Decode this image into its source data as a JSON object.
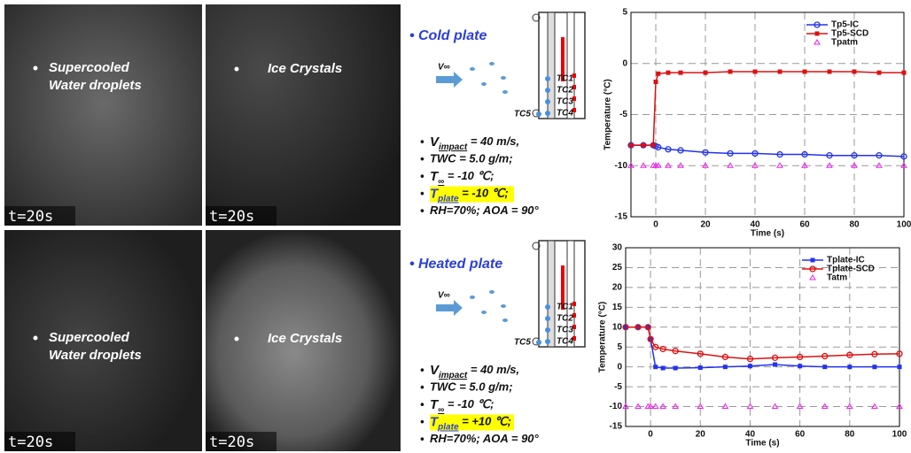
{
  "panels": [
    {
      "photos": [
        {
          "label": [
            "Supercooled",
            "Water droplets"
          ],
          "time": "t=20s"
        },
        {
          "label": [
            "Ice Crystals"
          ],
          "time": "t=20s"
        }
      ],
      "plate_title": "Cold plate",
      "diagram": {
        "velocity": "V∞",
        "sensors": [
          "TC1",
          "TC2",
          "TC3",
          "TC4",
          "TC5"
        ]
      },
      "conditions": [
        {
          "text": "V",
          "sub": "impact",
          "rest": " = 40 m/s,"
        },
        {
          "text": "TWC = 5.0 g/m;"
        },
        {
          "text": "T",
          "sub": "∞",
          "rest": " = -10 ℃;"
        },
        {
          "text": "T",
          "sub": "plate",
          "rest": " = -10  ℃;",
          "highlight": true
        },
        {
          "text": "RH=70%; AOA = 90°"
        }
      ]
    },
    {
      "photos": [
        {
          "label": [
            "Supercooled",
            "Water droplets"
          ],
          "time": "t=20s"
        },
        {
          "label": [
            "Ice Crystals"
          ],
          "time": "t=20s"
        }
      ],
      "plate_title": "Heated plate",
      "diagram": {
        "velocity": "V∞",
        "sensors": [
          "TC1",
          "TC2",
          "TC3",
          "TC4",
          "TC5"
        ]
      },
      "conditions": [
        {
          "text": "V",
          "sub": "impact",
          "rest": " = 40 m/s,"
        },
        {
          "text": "TWC = 5.0 g/m;"
        },
        {
          "text": "T",
          "sub": "∞",
          "rest": " = -10 ℃;"
        },
        {
          "text": "T",
          "sub": "plate",
          "rest": " = +10  ℃;",
          "highlight": true
        },
        {
          "text": "RH=70%; AOA = 90°"
        }
      ]
    }
  ],
  "chart_data": [
    {
      "type": "line",
      "x_label": "Time (s)",
      "y_label": "Temperature (°C)",
      "xlim": [
        -10,
        100
      ],
      "xticks": [
        0,
        20,
        40,
        60,
        80,
        100
      ],
      "ylim": [
        -15,
        5
      ],
      "yticks": [
        -15,
        -10,
        -5,
        0,
        5
      ],
      "grid": true,
      "x": [
        -10,
        -5,
        -1,
        0,
        1,
        5,
        10,
        20,
        30,
        40,
        50,
        60,
        70,
        80,
        90,
        100
      ],
      "series": [
        {
          "name": "Tp5-IC",
          "color": "#2233ee",
          "marker": "circle",
          "values": [
            -8,
            -8,
            -8,
            -8.1,
            -8.2,
            -8.4,
            -8.5,
            -8.7,
            -8.8,
            -8.8,
            -8.9,
            -8.9,
            -9,
            -9,
            -9,
            -9.1
          ]
        },
        {
          "name": "Tp5-SCD",
          "color": "#dd1111",
          "marker": "square",
          "values": [
            -8,
            -8,
            -8,
            -1.8,
            -1,
            -0.9,
            -0.9,
            -0.9,
            -0.8,
            -0.8,
            -0.8,
            -0.8,
            -0.8,
            -0.8,
            -0.9,
            -0.9
          ]
        },
        {
          "name": "Tpatm",
          "color": "#ee22ee",
          "marker": "triangle",
          "values": [
            -10,
            -10,
            -10,
            -10,
            -10,
            -10,
            -10,
            -10,
            -10,
            -10,
            -10,
            -10,
            -10,
            -10,
            -10,
            -10
          ]
        }
      ]
    },
    {
      "type": "line",
      "x_label": "Time (s)",
      "y_label": "Temperature (°C)",
      "xlim": [
        -10,
        100
      ],
      "xticks": [
        0,
        20,
        40,
        60,
        80,
        100
      ],
      "ylim": [
        -15,
        30
      ],
      "yticks": [
        -15,
        -10,
        -5,
        0,
        5,
        10,
        15,
        20,
        25,
        30
      ],
      "grid": true,
      "x": [
        -10,
        -5,
        -1,
        0,
        2,
        5,
        10,
        20,
        30,
        40,
        50,
        60,
        70,
        80,
        90,
        100
      ],
      "series": [
        {
          "name": "Tplate-IC",
          "color": "#2233ee",
          "marker": "square",
          "values": [
            10,
            10,
            10,
            7,
            0,
            -0.3,
            -0.3,
            -0.2,
            0,
            0.2,
            0.6,
            0.2,
            0,
            0,
            0,
            0
          ]
        },
        {
          "name": "Tplate-SCD",
          "color": "#dd1111",
          "marker": "circle",
          "values": [
            10,
            10,
            10,
            7,
            5,
            4.5,
            4,
            3.3,
            2.5,
            2,
            2.3,
            2.5,
            2.7,
            3,
            3.2,
            3.3
          ]
        },
        {
          "name": "Tatm",
          "color": "#ee22ee",
          "marker": "triangle",
          "values": [
            -10,
            -10,
            -10,
            -10,
            -10,
            -10,
            -10,
            -10,
            -10,
            -10,
            -10,
            -10,
            -10,
            -10,
            -10,
            -10
          ]
        }
      ]
    }
  ]
}
